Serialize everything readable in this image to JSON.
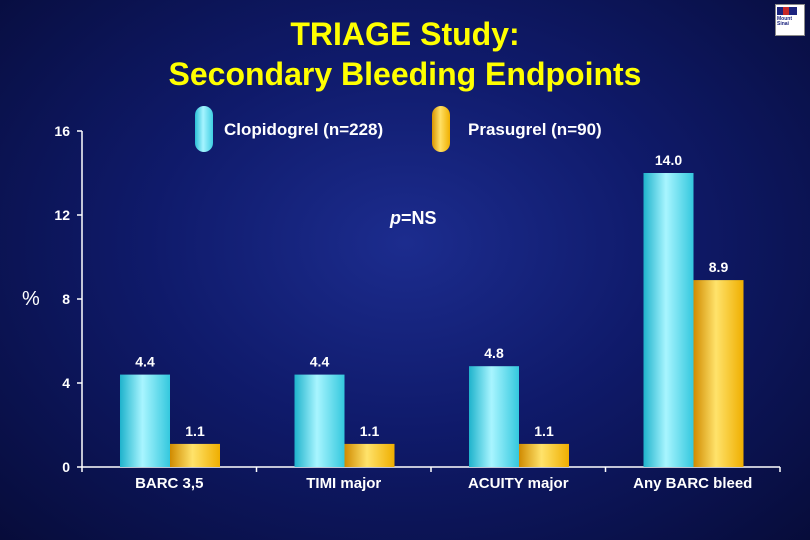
{
  "title_line1": "TRIAGE Study:",
  "title_line2": "Secondary Bleeding Endpoints",
  "logo_text": "Mount Sinai",
  "p_label": "p",
  "p_value": "=NS",
  "colors": {
    "clopidogrel": "#5fe3f5",
    "prasugrel": "#ffc000",
    "axis": "#ffffff",
    "title": "#ffff00"
  },
  "chart_data": {
    "type": "bar",
    "title": "TRIAGE Study: Secondary Bleeding Endpoints",
    "xlabel": "",
    "ylabel": "%",
    "ylim": [
      0,
      16
    ],
    "yticks": [
      0,
      4,
      8,
      12,
      16
    ],
    "categories": [
      "BARC 3,5",
      "TIMI major",
      "ACUITY major",
      "Any BARC bleed"
    ],
    "series": [
      {
        "name": "Clopidogrel (n=228)",
        "values": [
          4.4,
          4.4,
          4.8,
          14.0
        ],
        "labels": [
          "4.4",
          "4.4",
          "4.8",
          "14.0"
        ]
      },
      {
        "name": "Prasugrel (n=90)",
        "values": [
          1.1,
          1.1,
          1.1,
          8.9
        ],
        "labels": [
          "1.1",
          "1.1",
          "1.1",
          "8.9"
        ]
      }
    ],
    "annotation": "p=NS",
    "legend": "top"
  }
}
